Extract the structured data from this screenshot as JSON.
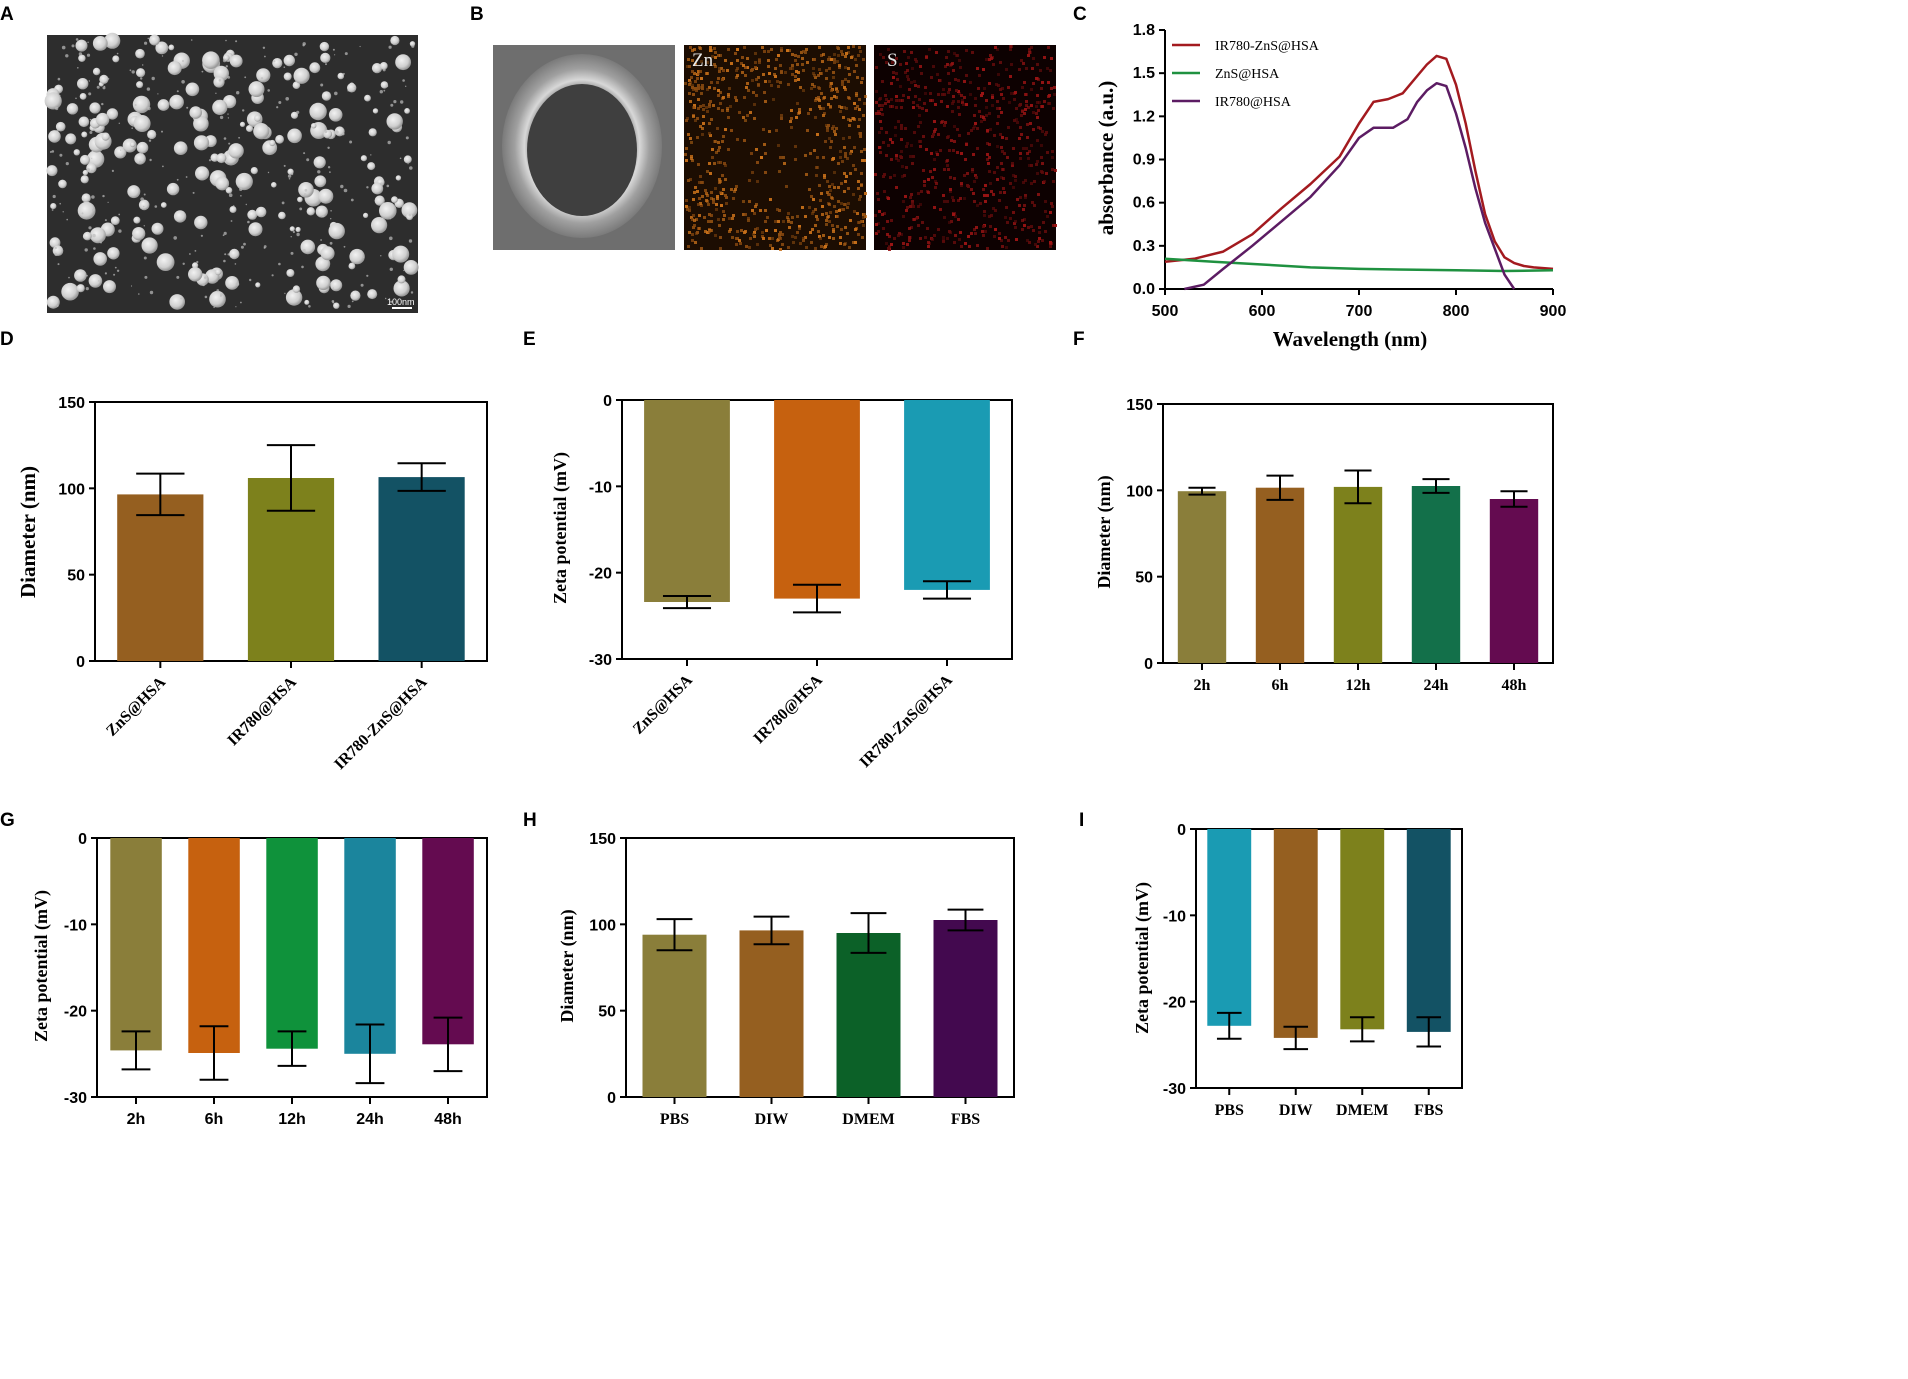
{
  "panel_labels": [
    "A",
    "B",
    "C",
    "D",
    "E",
    "F",
    "G",
    "H",
    "I"
  ],
  "panel_a": {
    "scale_bar": "100nm"
  },
  "panel_b": {
    "map_labels": [
      "Zn",
      "S"
    ]
  },
  "colors": {
    "red": "#a31a1f",
    "green": "#1f9140",
    "purple": "#5c1c63",
    "olive": "#8a7e3a",
    "brown": "#955f20",
    "olive_green": "#7d811c",
    "dark_teal": "#135264",
    "orange": "#c6610f",
    "cyan": "#1a9bb3",
    "dark_green": "#13704a",
    "magenta": "#640b50",
    "green2": "#0f923b",
    "cyan2": "#1b859d",
    "forest": "#0c6128",
    "violet": "#43094f"
  },
  "chart_data": [
    {
      "id": "C",
      "type": "line",
      "title": "",
      "xlabel": "Wavelength (nm)",
      "ylabel": "absorbance (a.u.)",
      "xlim": [
        500,
        900
      ],
      "ylim": [
        0,
        1.8
      ],
      "xticks": [
        "500",
        "600",
        "700",
        "800",
        "900"
      ],
      "yticks": [
        "0.0",
        "0.3",
        "0.6",
        "0.9",
        "1.2",
        "1.5",
        "1.8"
      ],
      "legend_position": "top-left",
      "series": [
        {
          "name": "IR780-ZnS@HSA",
          "color": "#a31a1f",
          "x": [
            500,
            530,
            560,
            590,
            620,
            650,
            680,
            700,
            715,
            730,
            745,
            760,
            770,
            780,
            790,
            800,
            810,
            820,
            830,
            840,
            850,
            860,
            870,
            880,
            900
          ],
          "y": [
            0.19,
            0.21,
            0.26,
            0.38,
            0.56,
            0.73,
            0.92,
            1.15,
            1.3,
            1.32,
            1.36,
            1.48,
            1.56,
            1.62,
            1.6,
            1.42,
            1.15,
            0.82,
            0.52,
            0.33,
            0.22,
            0.18,
            0.16,
            0.15,
            0.14
          ]
        },
        {
          "name": "ZnS@HSA",
          "color": "#1f9140",
          "x": [
            500,
            550,
            600,
            650,
            700,
            750,
            800,
            850,
            900
          ],
          "y": [
            0.21,
            0.19,
            0.17,
            0.15,
            0.14,
            0.135,
            0.13,
            0.125,
            0.13
          ]
        },
        {
          "name": "IR780@HSA",
          "color": "#5c1c63",
          "x": [
            520,
            540,
            560,
            590,
            620,
            650,
            680,
            700,
            715,
            735,
            750,
            760,
            770,
            780,
            790,
            800,
            810,
            820,
            830,
            840,
            850,
            860
          ],
          "y": [
            0.0,
            0.03,
            0.14,
            0.3,
            0.47,
            0.64,
            0.86,
            1.05,
            1.12,
            1.12,
            1.18,
            1.3,
            1.38,
            1.43,
            1.41,
            1.22,
            0.98,
            0.7,
            0.46,
            0.28,
            0.1,
            0.0
          ]
        }
      ]
    },
    {
      "id": "D",
      "type": "bar",
      "ylabel": "Diameter (nm)",
      "ylim": [
        0,
        150
      ],
      "yticks": [
        "0",
        "50",
        "100",
        "150"
      ],
      "categories": [
        "ZnS@HSA",
        "IR780@HSA",
        "IR780-ZnS@HSA"
      ],
      "values": [
        96.5,
        106,
        106.5
      ],
      "errors": [
        12,
        19,
        8
      ],
      "colors": [
        "#955f20",
        "#7d811c",
        "#135264"
      ]
    },
    {
      "id": "E",
      "type": "bar",
      "ylabel": "Zeta potential (mV)",
      "ylim": [
        -30,
        0
      ],
      "yticks": [
        "0",
        "-10",
        "-20",
        "-30"
      ],
      "categories": [
        "ZnS@HSA",
        "IR780@HSA",
        "IR780-ZnS@HSA"
      ],
      "values": [
        -23.4,
        -23,
        -22
      ],
      "errors": [
        0.7,
        1.6,
        1
      ],
      "colors": [
        "#8a7e3a",
        "#c6610f",
        "#1a9bb3"
      ]
    },
    {
      "id": "F",
      "type": "bar",
      "ylabel": "Diameter (nm)",
      "ylim": [
        0,
        150
      ],
      "yticks": [
        "0",
        "50",
        "100",
        "150"
      ],
      "categories": [
        "2h",
        "6h",
        "12h",
        "24h",
        "48h"
      ],
      "values": [
        99.5,
        101.5,
        102,
        102.5,
        95
      ],
      "errors": [
        2,
        7,
        9.5,
        4,
        4.5
      ],
      "colors": [
        "#8a7e3a",
        "#955f20",
        "#7d811c",
        "#13704a",
        "#640b50"
      ]
    },
    {
      "id": "G",
      "type": "bar",
      "ylabel": "Zeta potential (mV)",
      "ylim": [
        -30,
        0
      ],
      "yticks": [
        "0",
        "-10",
        "-20",
        "-30"
      ],
      "categories": [
        "2h",
        "6h",
        "12h",
        "24h",
        "48h"
      ],
      "values": [
        -24.6,
        -24.9,
        -24.4,
        -25,
        -23.9
      ],
      "errors": [
        2.2,
        3.1,
        2,
        3.4,
        3.1
      ],
      "colors": [
        "#8a7e3a",
        "#c6610f",
        "#0f923b",
        "#1b859d",
        "#640b50"
      ]
    },
    {
      "id": "H",
      "type": "bar",
      "ylabel": "Diameter (nm)",
      "ylim": [
        0,
        150
      ],
      "yticks": [
        "0",
        "50",
        "100",
        "150"
      ],
      "categories": [
        "PBS",
        "DIW",
        "DMEM",
        "FBS"
      ],
      "values": [
        94,
        96.5,
        95,
        102.5
      ],
      "errors": [
        9,
        8,
        11.5,
        6
      ],
      "colors": [
        "#8a7e3a",
        "#955f20",
        "#0c6128",
        "#43094f"
      ]
    },
    {
      "id": "I",
      "type": "bar",
      "ylabel": "Zeta potential (mV)",
      "ylim": [
        -30,
        0
      ],
      "yticks": [
        "0",
        "-10",
        "-20",
        "-30"
      ],
      "categories": [
        "PBS",
        "DIW",
        "DMEM",
        "FBS"
      ],
      "values": [
        -22.8,
        -24.2,
        -23.2,
        -23.5
      ],
      "errors": [
        1.5,
        1.3,
        1.4,
        1.7
      ],
      "colors": [
        "#1a9bb3",
        "#955f20",
        "#7d811c",
        "#135264"
      ]
    }
  ]
}
